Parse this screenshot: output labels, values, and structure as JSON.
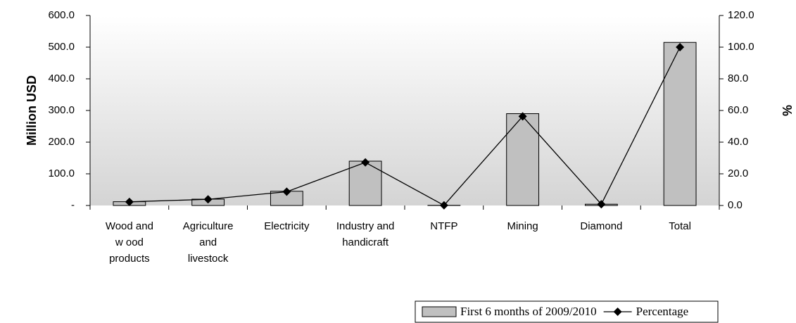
{
  "chart_data": {
    "type": "bar",
    "categories": [
      "Wood and\nw ood\nproducts",
      "Agriculture\nand\nlivestock",
      "Electricity",
      "Industry and\nhandicraft",
      "NTFP",
      "Mining",
      "Diamond",
      "Total"
    ],
    "series": [
      {
        "name": "First 6 months of 2009/2010",
        "color": "#c0c0c0",
        "values": [
          12,
          20,
          45,
          140,
          0.5,
          290,
          4,
          515
        ]
      },
      {
        "name": "Percentage",
        "color": "#000000",
        "axis": "y2",
        "type": "line",
        "values": [
          2.3,
          3.9,
          8.7,
          27.2,
          0.1,
          56.3,
          0.8,
          100
        ]
      }
    ],
    "y_label": "Million USD",
    "y2_label": "%",
    "ylim": [
      0,
      600
    ],
    "yticks": [
      {
        "value": 0,
        "label": "-"
      },
      {
        "value": 100,
        "label": "100.0"
      },
      {
        "value": 200,
        "label": "200.0"
      },
      {
        "value": 300,
        "label": "300.0"
      },
      {
        "value": 400,
        "label": "400.0"
      },
      {
        "value": 500,
        "label": "500.0"
      },
      {
        "value": 600,
        "label": "600.0"
      }
    ],
    "y2lim": [
      0,
      120
    ],
    "y2ticks": [
      {
        "value": 0,
        "label": "0.0"
      },
      {
        "value": 20,
        "label": "20.0"
      },
      {
        "value": 40,
        "label": "40.0"
      },
      {
        "value": 60,
        "label": "60.0"
      },
      {
        "value": 80,
        "label": "80.0"
      },
      {
        "value": 100,
        "label": "100.0"
      },
      {
        "value": 120,
        "label": "120.0"
      }
    ],
    "legend": "bottom-right"
  }
}
